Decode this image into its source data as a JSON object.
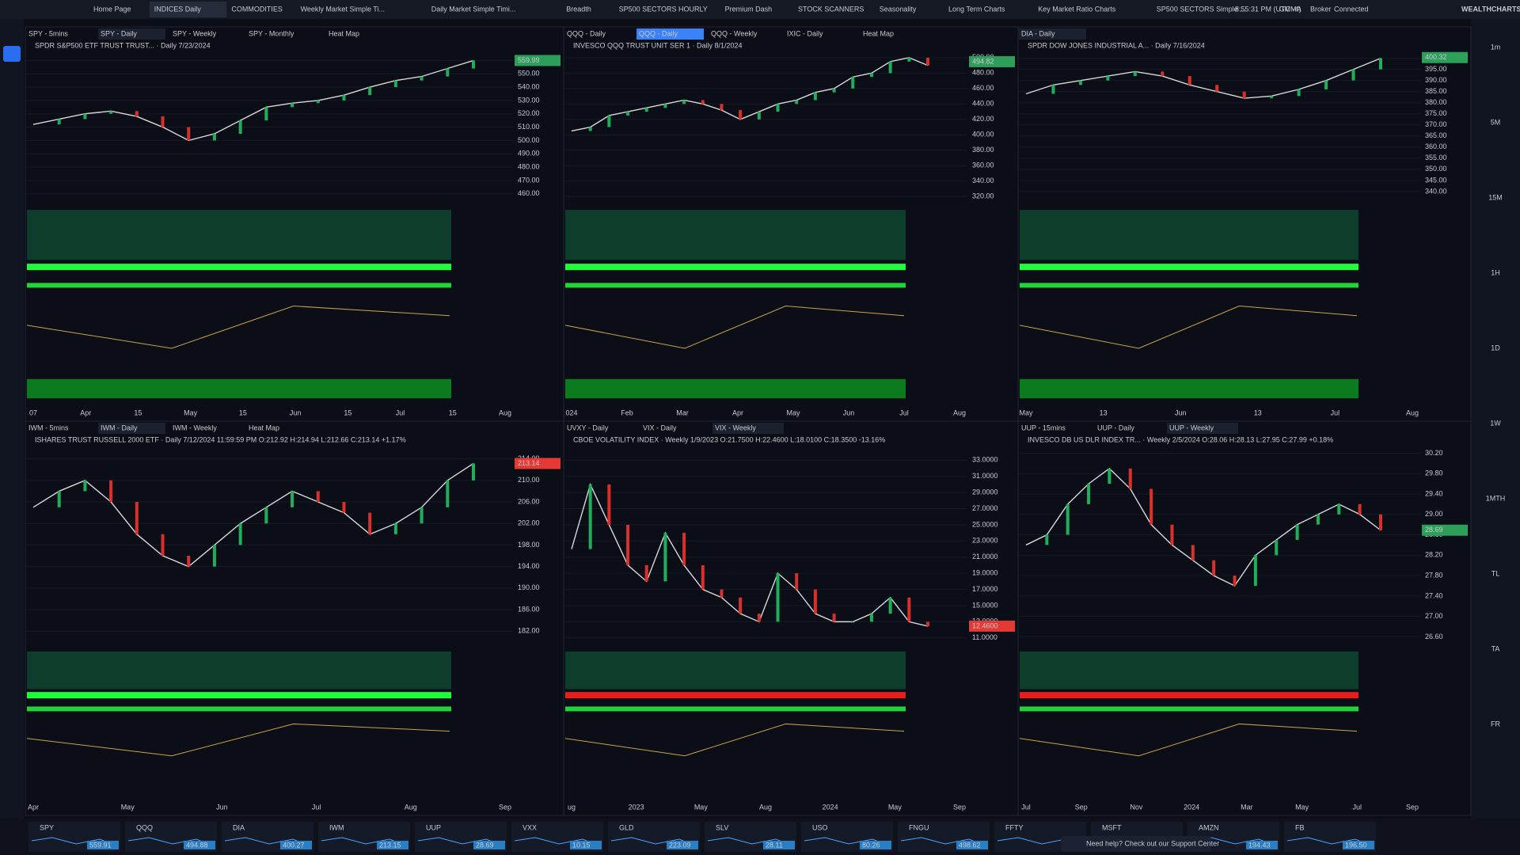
{
  "header": {
    "tabs": [
      "Home Page",
      "INDICES Daily",
      "COMMODITIES",
      "Weekly Market Simple Ti...",
      "Daily Market Simple Timi...",
      "Breadth",
      "SP500 SECTORS HOURLY",
      "Premium Dash",
      "STOCK SCANNERS",
      "Seasonality",
      "Long Term Charts",
      "Key Market Ratio Charts",
      "SP500 SECTORS Simple ...",
      "GMMA"
    ],
    "active_tab": 1,
    "time": "8:55:31 PM (UTC -4)",
    "broker": "Broker",
    "status": "Connected",
    "brand": "WEALTHCHARTS"
  },
  "timeframes": [
    "1m",
    "5M",
    "15M",
    "1H",
    "1D",
    "1W",
    "1MTH",
    "TL",
    "TA",
    "FR"
  ],
  "panels": [
    {
      "subtabs": [
        "SPY - 5mins",
        "SPY - Daily",
        "SPY - Weekly",
        "SPY - Monthly",
        "Heat Map"
      ],
      "active": 1,
      "title": "SPDR S&P500 ETF TRUST TRUST... · Daily 7/23/2024",
      "ylim": [
        455,
        565
      ],
      "yticks": [
        {
          "value": 460,
          "label": "460.00"
        },
        {
          "value": 470,
          "label": "470.00"
        },
        {
          "value": 480,
          "label": "480.00"
        },
        {
          "value": 490,
          "label": "490.00"
        },
        {
          "value": 500,
          "label": "500.00"
        },
        {
          "value": 510,
          "label": "510.00"
        },
        {
          "value": 520,
          "label": "520.00"
        },
        {
          "value": 530,
          "label": "530.00"
        },
        {
          "value": 540,
          "label": "540.00"
        },
        {
          "value": 550,
          "label": "550.00"
        },
        {
          "value": 560,
          "label": "560.00"
        }
      ],
      "closes": [
        512,
        516,
        520,
        522,
        518,
        510,
        500,
        505,
        515,
        525,
        528,
        530,
        534,
        540,
        545,
        548,
        554,
        560
      ],
      "last": {
        "value": 559.99,
        "label": "559.99"
      },
      "x_labels": [
        "07",
        "Apr",
        "15",
        "May",
        "15",
        "Jun",
        "15",
        "Jul",
        "15",
        "Aug"
      ]
    },
    {
      "subtabs": [
        "QQQ - Daily",
        "QQQ - Daily",
        "QQQ - Weekly",
        "IXIC - Daily",
        "Heat Map"
      ],
      "active": 1,
      "title": "INVESCO QQQ TRUST UNIT SER 1 · Daily 8/1/2024",
      "ylim": [
        315,
        505
      ],
      "yticks": [
        {
          "value": 320,
          "label": "320.00"
        },
        {
          "value": 340,
          "label": "340.00"
        },
        {
          "value": 360,
          "label": "360.00"
        },
        {
          "value": 380,
          "label": "380.00"
        },
        {
          "value": 400,
          "label": "400.00"
        },
        {
          "value": 420,
          "label": "420.00"
        },
        {
          "value": 440,
          "label": "440.00"
        },
        {
          "value": 460,
          "label": "460.00"
        },
        {
          "value": 480,
          "label": "480.00"
        },
        {
          "value": 500,
          "label": "500.00"
        }
      ],
      "closes": [
        405,
        410,
        425,
        430,
        435,
        440,
        445,
        440,
        432,
        420,
        430,
        440,
        445,
        455,
        460,
        475,
        480,
        495,
        500,
        490
      ],
      "last": {
        "value": 494.82,
        "label": "494.82"
      },
      "x_labels": [
        "024",
        "Feb",
        "Mar",
        "Apr",
        "May",
        "Jun",
        "Jul",
        "Aug"
      ]
    },
    {
      "subtabs": [
        "DIA - Daily"
      ],
      "active": 0,
      "title": "SPDR DOW JONES INDUSTRIAL A... · Daily 7/16/2024",
      "ylim": [
        336,
        402
      ],
      "yticks": [
        {
          "value": 340,
          "label": "340.00"
        },
        {
          "value": 345,
          "label": "345.00"
        },
        {
          "value": 350,
          "label": "350.00"
        },
        {
          "value": 355,
          "label": "355.00"
        },
        {
          "value": 360,
          "label": "360.00"
        },
        {
          "value": 365,
          "label": "365.00"
        },
        {
          "value": 370,
          "label": "370.00"
        },
        {
          "value": 375,
          "label": "375.00"
        },
        {
          "value": 380,
          "label": "380.00"
        },
        {
          "value": 385,
          "label": "385.00"
        },
        {
          "value": 390,
          "label": "390.00"
        },
        {
          "value": 395,
          "label": "395.00"
        },
        {
          "value": 400,
          "label": "400.00"
        }
      ],
      "closes": [
        384,
        388,
        390,
        392,
        394,
        392,
        388,
        385,
        382,
        383,
        386,
        390,
        395,
        400
      ],
      "last": {
        "value": 400.32,
        "label": "400.32"
      },
      "x_labels": [
        "May",
        "13",
        "Jun",
        "13",
        "Jul",
        "Aug"
      ]
    },
    {
      "subtabs": [
        "IWM - 5mins",
        "IWM - Daily",
        "IWM - Weekly",
        "Heat Map"
      ],
      "active": 1,
      "title": "ISHARES TRUST RUSSELL 2000 ETF · Daily 7/12/2024 11:59:59 PM O:212.92 H:214.94 L:212.66 C:213.14 +1.17%",
      "ylim": [
        180,
        216
      ],
      "yticks": [
        {
          "value": 182,
          "label": "182.00"
        },
        {
          "value": 186,
          "label": "186.00"
        },
        {
          "value": 190,
          "label": "190.00"
        },
        {
          "value": 194,
          "label": "194.00"
        },
        {
          "value": 198,
          "label": "198.00"
        },
        {
          "value": 202,
          "label": "202.00"
        },
        {
          "value": 206,
          "label": "206.00"
        },
        {
          "value": 210,
          "label": "210.00"
        },
        {
          "value": 214,
          "label": "214.00"
        }
      ],
      "closes": [
        205,
        208,
        210,
        206,
        200,
        196,
        194,
        198,
        202,
        205,
        208,
        206,
        204,
        200,
        202,
        205,
        210,
        213.14
      ],
      "last": {
        "value": 213.14,
        "label": "213.14"
      },
      "x_labels": [
        "Apr",
        "May",
        "Jun",
        "Jul",
        "Aug",
        "Sep"
      ]
    },
    {
      "subtabs": [
        "UVXY - Daily",
        "VIX - Daily",
        "VIX - Weekly"
      ],
      "active": 2,
      "title": "CBOE VOLATILITY INDEX · Weekly 1/9/2023 O:21.7500 H:22.4600 L:18.0100 C:18.3500 -13.16%",
      "ylim": [
        10.5,
        34.5
      ],
      "yticks": [
        {
          "value": 11,
          "label": "11.0000"
        },
        {
          "value": 13,
          "label": "13.0000"
        },
        {
          "value": 15,
          "label": "15.0000"
        },
        {
          "value": 17,
          "label": "17.0000"
        },
        {
          "value": 19,
          "label": "19.0000"
        },
        {
          "value": 21,
          "label": "21.0000"
        },
        {
          "value": 23,
          "label": "23.0000"
        },
        {
          "value": 25,
          "label": "25.0000"
        },
        {
          "value": 27,
          "label": "27.0000"
        },
        {
          "value": 29,
          "label": "29.0000"
        },
        {
          "value": 31,
          "label": "31.0000"
        },
        {
          "value": 33,
          "label": "33.0000"
        }
      ],
      "closes": [
        22,
        30,
        25,
        20,
        18,
        24,
        20,
        17,
        16,
        14,
        13,
        19,
        17,
        14,
        13,
        13,
        14,
        16,
        13,
        12.46
      ],
      "last": {
        "value": 12.46,
        "label": "12.4600"
      },
      "x_labels": [
        "ug",
        "2023",
        "May",
        "Aug",
        "2024",
        "May",
        "Sep"
      ]
    },
    {
      "subtabs": [
        "UUP - 15mins",
        "UUP - Daily",
        "UUP - Weekly"
      ],
      "active": 2,
      "title": "INVESCO DB US DLR INDEX TR... · Weekly 2/5/2024 O:28.06 H:28.13 L:27.95 C:27.99 +0.18%",
      "ylim": [
        26.5,
        30.3
      ],
      "yticks": [
        {
          "value": 26.6,
          "label": "26.60"
        },
        {
          "value": 27,
          "label": "27.00"
        },
        {
          "value": 27.4,
          "label": "27.40"
        },
        {
          "value": 27.8,
          "label": "27.80"
        },
        {
          "value": 28.2,
          "label": "28.20"
        },
        {
          "value": 28.6,
          "label": "28.60"
        },
        {
          "value": 29,
          "label": "29.00"
        },
        {
          "value": 29.4,
          "label": "29.40"
        },
        {
          "value": 29.8,
          "label": "29.80"
        },
        {
          "value": 30.2,
          "label": "30.20"
        }
      ],
      "closes": [
        28.4,
        28.6,
        29.2,
        29.6,
        29.9,
        29.5,
        28.8,
        28.4,
        28.1,
        27.8,
        27.6,
        28.2,
        28.5,
        28.8,
        29.0,
        29.2,
        29.0,
        28.69
      ],
      "last": {
        "value": 28.69,
        "label": "28.69"
      },
      "x_labels": [
        "Jul",
        "Sep",
        "Nov",
        "2024",
        "Mar",
        "May",
        "Jul",
        "Sep"
      ]
    }
  ],
  "watchlist": [
    {
      "symbol": "SPY",
      "price": "559.91"
    },
    {
      "symbol": "QQQ",
      "price": "494.88"
    },
    {
      "symbol": "DIA",
      "price": "400.27"
    },
    {
      "symbol": "IWM",
      "price": "213.15"
    },
    {
      "symbol": "UUP",
      "price": "28.69"
    },
    {
      "symbol": "VXX",
      "price": "10.15"
    },
    {
      "symbol": "GLD",
      "price": "223.09"
    },
    {
      "symbol": "SLV",
      "price": "28.11"
    },
    {
      "symbol": "USO",
      "price": "80.26"
    },
    {
      "symbol": "FNGU",
      "price": "498.62"
    },
    {
      "symbol": "FFTY"
    },
    {
      "symbol": "MSFT"
    },
    {
      "symbol": "AMZN",
      "price": "194.43"
    },
    {
      "symbol": "FB",
      "price": "196.50"
    }
  ],
  "support": "Need help? Check out our Support Center"
}
